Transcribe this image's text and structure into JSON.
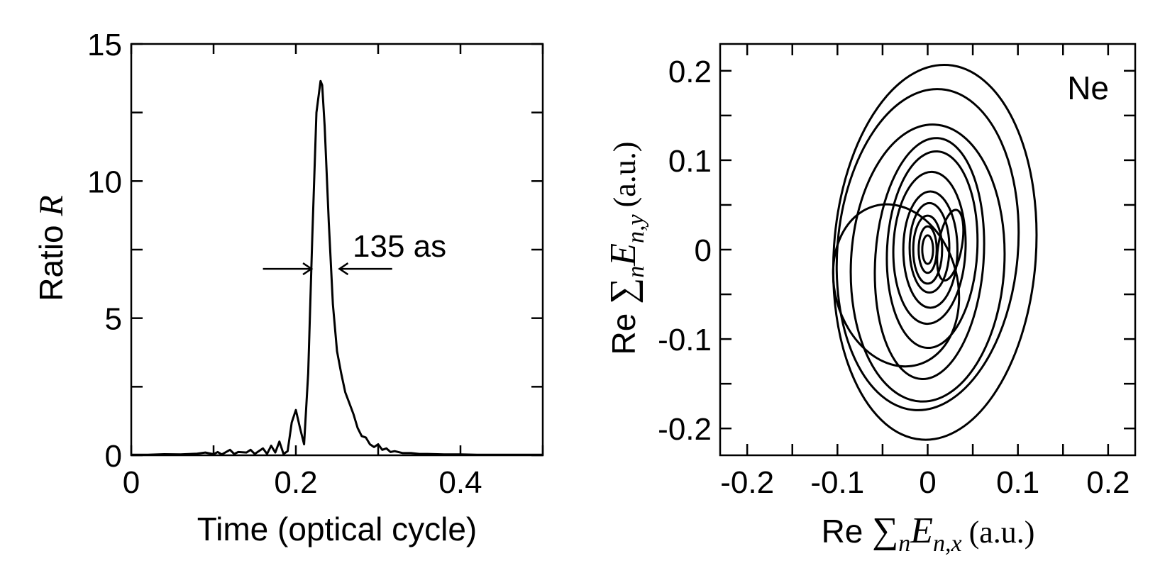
{
  "chart_data": [
    {
      "type": "line",
      "panel": "left",
      "xlabel": "Time (optical cycle)",
      "ylabel_prefix": "Ratio ",
      "ylabel_var": "R",
      "xlim": [
        0,
        0.5
      ],
      "ylim": [
        0,
        15
      ],
      "xticks": [
        0,
        0.2,
        0.4
      ],
      "xtick_labels": [
        "0",
        "0.2",
        "0.4"
      ],
      "yticks": [
        0,
        5,
        10,
        15
      ],
      "ytick_labels": [
        "0",
        "5",
        "10",
        "15"
      ],
      "annotation": {
        "text": "135 as",
        "y": 6.8,
        "left_arrow_from": 0.16,
        "left_arrow_to": 0.219,
        "right_arrow_from": 0.317,
        "right_arrow_to": 0.253
      },
      "series": [
        {
          "x": [
            0,
            0.02,
            0.04,
            0.06,
            0.08,
            0.09,
            0.1,
            0.105,
            0.11,
            0.12,
            0.125,
            0.13,
            0.14,
            0.145,
            0.15,
            0.16,
            0.165,
            0.17,
            0.175,
            0.18,
            0.185,
            0.19,
            0.195,
            0.2,
            0.205,
            0.21,
            0.215,
            0.22,
            0.225,
            0.23,
            0.232,
            0.235,
            0.24,
            0.245,
            0.25,
            0.255,
            0.26,
            0.265,
            0.27,
            0.275,
            0.28,
            0.285,
            0.29,
            0.295,
            0.3,
            0.305,
            0.31,
            0.315,
            0.32,
            0.33,
            0.34,
            0.35,
            0.36,
            0.38,
            0.4,
            0.42,
            0.45,
            0.5
          ],
          "y": [
            0.02,
            0.02,
            0.04,
            0.03,
            0.06,
            0.1,
            0.04,
            0.12,
            0.03,
            0.2,
            0.05,
            0.12,
            0.1,
            0.2,
            0.05,
            0.25,
            0.05,
            0.35,
            0.1,
            0.5,
            0.05,
            0.15,
            1.2,
            1.65,
            1.0,
            0.4,
            3.0,
            8.0,
            12.5,
            13.65,
            13.5,
            12.0,
            8.5,
            5.5,
            3.8,
            3.0,
            2.3,
            1.9,
            1.5,
            1.0,
            0.7,
            0.65,
            0.4,
            0.3,
            0.4,
            0.2,
            0.25,
            0.12,
            0.15,
            0.08,
            0.08,
            0.05,
            0.05,
            0.03,
            0.03,
            0.02,
            0.02,
            0.02
          ]
        }
      ]
    },
    {
      "type": "line",
      "panel": "right",
      "label": "Ne",
      "xlabel_prefix": "Re ",
      "xlabel_sigma": "∑",
      "xlabel_sub1": "n",
      "xlabel_E": "E",
      "xlabel_sub2": "n,x",
      "xlabel_unit": "(a.u.)",
      "ylabel_prefix": "Re ",
      "ylabel_sigma": "∑",
      "ylabel_sub1": "n",
      "ylabel_E": "E",
      "ylabel_sub2": "n,y",
      "ylabel_unit": "(a.u.)",
      "xlim": [
        -0.23,
        0.23
      ],
      "ylim": [
        -0.23,
        0.23
      ],
      "xticks": [
        -0.2,
        -0.1,
        0,
        0.1,
        0.2
      ],
      "xtick_labels": [
        "-0.2",
        "-0.1",
        "0",
        "0.1",
        "0.2"
      ],
      "yticks": [
        -0.2,
        -0.1,
        0,
        0.1,
        0.2
      ],
      "ytick_labels": [
        "-0.2",
        "-0.1",
        "0",
        "0.1",
        "0.2"
      ],
      "curves": [
        {
          "cx": 0.008,
          "cy": -0.003,
          "rx": 0.112,
          "ry": 0.21,
          "rot": 4
        },
        {
          "cx": 0.0,
          "cy": 0.0,
          "rx": 0.1,
          "ry": 0.18,
          "rot": 5
        },
        {
          "cx": 0.0,
          "cy": -0.015,
          "rx": 0.085,
          "ry": 0.155,
          "rot": 3
        },
        {
          "cx": 0.002,
          "cy": -0.01,
          "rx": 0.06,
          "ry": 0.135,
          "rot": 4
        },
        {
          "cx": 0.005,
          "cy": 0.0,
          "rx": 0.05,
          "ry": 0.11,
          "rot": 3
        },
        {
          "cx": 0.002,
          "cy": 0.002,
          "rx": 0.04,
          "ry": 0.085,
          "rot": 2
        },
        {
          "cx": 0.003,
          "cy": 0.0,
          "rx": 0.03,
          "ry": 0.065,
          "rot": 0
        },
        {
          "cx": 0.002,
          "cy": 0.002,
          "rx": 0.022,
          "ry": 0.05,
          "rot": 0
        },
        {
          "cx": 0.0,
          "cy": 0.0,
          "rx": 0.016,
          "ry": 0.038,
          "rot": 0
        },
        {
          "cx": 0.0,
          "cy": 0.0,
          "rx": 0.01,
          "ry": 0.026,
          "rot": 0
        },
        {
          "cx": 0.0,
          "cy": 0.0,
          "rx": 0.006,
          "ry": 0.016,
          "rot": 0
        },
        {
          "cx": -0.035,
          "cy": -0.04,
          "rx": 0.068,
          "ry": 0.092,
          "rot": -15
        },
        {
          "cx": 0.025,
          "cy": 0.005,
          "rx": 0.013,
          "ry": 0.04,
          "rot": 10
        }
      ]
    }
  ]
}
